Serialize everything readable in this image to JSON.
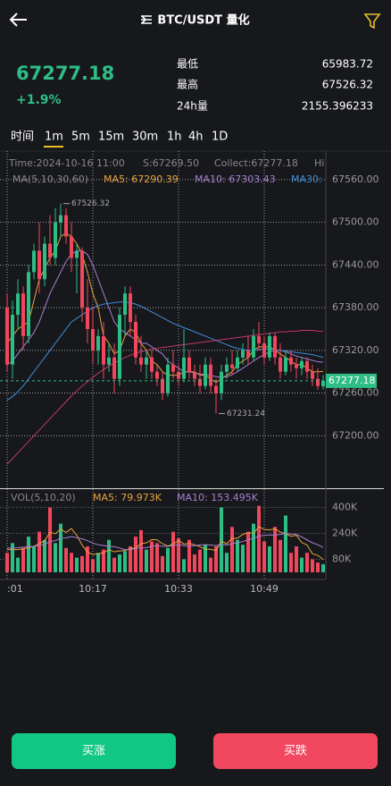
{
  "header": {
    "title": "BTC/USDT 量化"
  },
  "price": "67277.18",
  "change": "+1.9%",
  "stats": [
    {
      "label": "最低",
      "value": "65983.72"
    },
    {
      "label": "最高",
      "value": "67526.32"
    },
    {
      "label": "24h量",
      "value": "2155.396233"
    }
  ],
  "timeframes": [
    "时间",
    "1m",
    "5m",
    "15m",
    "30m",
    "1h",
    "4h",
    "1D"
  ],
  "buttons": {
    "buy": "买涨",
    "sell": "买跌"
  },
  "chart_data": {
    "type": "candlestick",
    "info": [
      "Time:2024-10-16 11:00",
      "S:67269.50",
      "Collect:67277.18",
      "Hi"
    ],
    "legend": "MA(5,10,30,60)",
    "volume_legend": [
      "VOL(5,10,20)",
      "MA5: 79.973K",
      "MA10: 153.495K"
    ],
    "up_color": "#2ebd85",
    "down_color": "#f0475c",
    "categories": [
      ":01",
      null,
      null,
      null,
      null,
      null,
      null,
      null,
      null,
      null,
      null,
      null,
      null,
      null,
      null,
      null,
      "10:17",
      null,
      null,
      null,
      null,
      null,
      null,
      null,
      null,
      null,
      null,
      null,
      null,
      null,
      null,
      null,
      "10:33",
      null,
      null,
      null,
      null,
      null,
      null,
      null,
      null,
      null,
      null,
      null,
      null,
      null,
      null,
      null,
      "10:49",
      null,
      null,
      null,
      null,
      null,
      null,
      null,
      null,
      null,
      null,
      null
    ],
    "open": [
      67380,
      67300,
      67370,
      67400,
      67340,
      67430,
      67460,
      67420,
      67470,
      67450,
      67500,
      67510,
      67480,
      67450,
      67460,
      67380,
      67350,
      67320,
      67340,
      67300,
      67310,
      67280,
      67370,
      67400,
      67360,
      67310,
      67300,
      67310,
      67290,
      67280,
      67260,
      67300,
      67290,
      67280,
      67310,
      67290,
      67280,
      67270,
      67300,
      67270,
      67260,
      67290,
      67300,
      67295,
      67310,
      67320,
      67310,
      67340,
      67330,
      67310,
      67340,
      67310,
      67290,
      67310,
      67300,
      67295,
      67305,
      67290,
      67280,
      67269.5
    ],
    "high": [
      67400,
      67390,
      67420,
      67410,
      67440,
      67470,
      67500,
      67480,
      67510,
      67520,
      67526.32,
      67520,
      67500,
      67470,
      67465,
      67420,
      67380,
      67350,
      67360,
      67330,
      67330,
      67380,
      67410,
      67410,
      67370,
      67340,
      67320,
      67320,
      67300,
      67290,
      67310,
      67320,
      67300,
      67350,
      67320,
      67300,
      67300,
      67310,
      67310,
      67280,
      67300,
      67310,
      67320,
      67320,
      67330,
      67340,
      67350,
      67360,
      67340,
      67345,
      67345,
      67330,
      67320,
      67320,
      67310,
      67310,
      67310,
      67300,
      67295,
      67285
    ],
    "low": [
      67290,
      67280,
      67350,
      67320,
      67330,
      67420,
      67400,
      67410,
      67440,
      67440,
      67480,
      67470,
      67430,
      67400,
      67360,
      67330,
      67300,
      67300,
      67280,
      67290,
      67260,
      67270,
      67340,
      67340,
      67300,
      67290,
      67280,
      67280,
      67270,
      67250,
      67255,
      67280,
      67270,
      67275,
      67280,
      67270,
      67260,
      67265,
      67260,
      67231.24,
      67250,
      67280,
      67285,
      67290,
      67300,
      67300,
      67305,
      67320,
      67300,
      67305,
      67300,
      67280,
      67285,
      67290,
      67280,
      67285,
      67280,
      67270,
      67265,
      67265
    ],
    "close": [
      67300,
      67370,
      67400,
      67340,
      67430,
      67460,
      67420,
      67470,
      67450,
      67500,
      67510,
      67480,
      67450,
      67460,
      67380,
      67350,
      67320,
      67340,
      67300,
      67310,
      67280,
      67370,
      67400,
      67360,
      67310,
      67300,
      67310,
      67290,
      67280,
      67260,
      67300,
      67290,
      67280,
      67310,
      67290,
      67280,
      67270,
      67300,
      67270,
      67260,
      67290,
      67300,
      67295,
      67310,
      67320,
      67310,
      67340,
      67330,
      67310,
      67340,
      67310,
      67290,
      67310,
      67300,
      67295,
      67305,
      67290,
      67280,
      67270,
      67277.18
    ],
    "ma_series": [
      {
        "name": "MA5: 67290.39",
        "color": "#e8a33d",
        "values": [
          67330,
          67340,
          67350,
          67355,
          67360,
          67390,
          67420,
          67435,
          67450,
          67460,
          67480,
          67485,
          67480,
          67470,
          67455,
          67430,
          67400,
          67380,
          67340,
          67330,
          67315,
          67320,
          67340,
          67350,
          67345,
          67330,
          67320,
          67305,
          67300,
          67290,
          67285,
          67285,
          67285,
          67290,
          67290,
          67290,
          67285,
          67285,
          67280,
          67275,
          67280,
          67285,
          67290,
          67300,
          67305,
          67310,
          67320,
          67325,
          67325,
          67325,
          67320,
          67315,
          67310,
          67305,
          67300,
          67300,
          67295,
          67290,
          67290,
          67290.39
        ]
      },
      {
        "name": "MA10: 67303.43",
        "color": "#a77ed0",
        "values": [
          67300,
          67305,
          67315,
          67325,
          67335,
          67345,
          67360,
          67380,
          67400,
          67415,
          67430,
          67445,
          67455,
          67460,
          67460,
          67455,
          67440,
          67420,
          67400,
          67380,
          67360,
          67350,
          67345,
          67340,
          67335,
          67330,
          67330,
          67325,
          67320,
          67315,
          67305,
          67300,
          67295,
          67290,
          67290,
          67288,
          67287,
          67286,
          67285,
          67283,
          67282,
          67283,
          67286,
          67290,
          67295,
          67300,
          67305,
          67310,
          67314,
          67318,
          67320,
          67320,
          67318,
          67315,
          67312,
          67310,
          67308,
          67306,
          67304,
          67303.43
        ]
      },
      {
        "name": "MA30:",
        "color": "#3d8fd9",
        "values": [
          67250,
          67255,
          67262,
          67270,
          67280,
          67290,
          67300,
          67310,
          67320,
          67330,
          67340,
          67350,
          67360,
          67365,
          67370,
          67375,
          67380,
          67383,
          67385,
          67386,
          67387,
          67388,
          67388,
          67387,
          67385,
          67382,
          67378,
          67374,
          67370,
          67366,
          67362,
          67358,
          67355,
          67352,
          67349,
          67346,
          67343,
          67340,
          67337,
          67334,
          67331,
          67328,
          67325,
          67323,
          67321,
          67320,
          67320,
          67321,
          67322,
          67322,
          67321,
          67320,
          67319,
          67318,
          67317,
          67316,
          67315,
          67314,
          67312,
          67310
        ]
      },
      {
        "color": "#c2366a",
        "values": [
          67160,
          67168,
          67176,
          67184,
          67192,
          67200,
          67208,
          67216,
          67224,
          67232,
          67240,
          67248,
          67256,
          67263,
          67270,
          67276,
          67282,
          67288,
          67293,
          67298,
          67302,
          67306,
          67310,
          67313,
          67316,
          67318,
          67320,
          67322,
          67323,
          67324,
          67325,
          67326,
          67327,
          67328,
          67329,
          67330,
          67331,
          67332,
          67333,
          67334,
          67335,
          67336,
          67337,
          67338,
          67339,
          67340,
          67341,
          67342,
          67343,
          67344,
          67345,
          67346,
          67346,
          67347,
          67347,
          67348,
          67348,
          67348,
          67347,
          67347
        ]
      }
    ],
    "current_price": 67277.18,
    "ylim": [
      67127.5,
      67592.5
    ],
    "yticks": [
      {
        "value": 67560,
        "label": "67560.00"
      },
      {
        "value": 67500,
        "label": "67500.00"
      },
      {
        "value": 67440,
        "label": "67440.00"
      },
      {
        "value": 67380,
        "label": "67380.00"
      },
      {
        "value": 67320,
        "label": "67320.00"
      },
      {
        "value": 67260,
        "label": "67260.00"
      },
      {
        "value": 67200,
        "label": "67200.00"
      }
    ],
    "volume": [
      120000,
      180000,
      90000,
      150000,
      220000,
      160000,
      250000,
      200000,
      400000,
      180000,
      300000,
      150000,
      120000,
      90000,
      100000,
      160000,
      80000,
      120000,
      140000,
      200000,
      90000,
      110000,
      130000,
      160000,
      220000,
      260000,
      140000,
      190000,
      180000,
      100000,
      150000,
      250000,
      210000,
      80000,
      200000,
      110000,
      140000,
      170000,
      90000,
      160000,
      400000,
      120000,
      280000,
      200000,
      170000,
      250000,
      300000,
      410000,
      190000,
      160000,
      280000,
      200000,
      350000,
      120000,
      160000,
      90000,
      120000,
      80000,
      60000,
      50000
    ],
    "volume_ma": [
      {
        "color": "#e8a33d",
        "values": [
          140000,
          140000,
          140000,
          145000,
          152000,
          160000,
          176000,
          196000,
          246000,
          238000,
          266000,
          246000,
          270000,
          228000,
          168000,
          124000,
          110000,
          114000,
          120000,
          140000,
          126000,
          132000,
          134000,
          146000,
          150000,
          176000,
          182000,
          202000,
          200000,
          176000,
          162000,
          174000,
          196000,
          174000,
          178000,
          170000,
          158000,
          142000,
          142000,
          134000,
          192000,
          176000,
          210000,
          210000,
          234000,
          244000,
          240000,
          282000,
          264000,
          262000,
          268000,
          248000,
          238000,
          222000,
          228000,
          184000,
          168000,
          114000,
          104000,
          79973
        ]
      },
      {
        "color": "#a77ed0",
        "values": [
          150000,
          150000,
          152000,
          155000,
          158000,
          160000,
          165000,
          172000,
          190000,
          195000,
          210000,
          212000,
          220000,
          214000,
          206000,
          195000,
          180000,
          170000,
          165000,
          160000,
          158000,
          150000,
          140000,
          140000,
          148000,
          150000,
          152000,
          160000,
          165000,
          160000,
          160000,
          165000,
          170000,
          165000,
          160000,
          165000,
          168000,
          170000,
          168000,
          165000,
          172000,
          168000,
          176000,
          182000,
          190000,
          200000,
          210000,
          222000,
          228000,
          230000,
          230000,
          234000,
          240000,
          236000,
          234000,
          218000,
          200000,
          182000,
          170000,
          153495
        ]
      }
    ],
    "vylim": [
      0,
      480000
    ],
    "vyticks": [
      {
        "value": 400000,
        "label": "400K"
      },
      {
        "value": 240000,
        "label": "240K"
      },
      {
        "value": 80000,
        "label": "80K"
      }
    ]
  }
}
